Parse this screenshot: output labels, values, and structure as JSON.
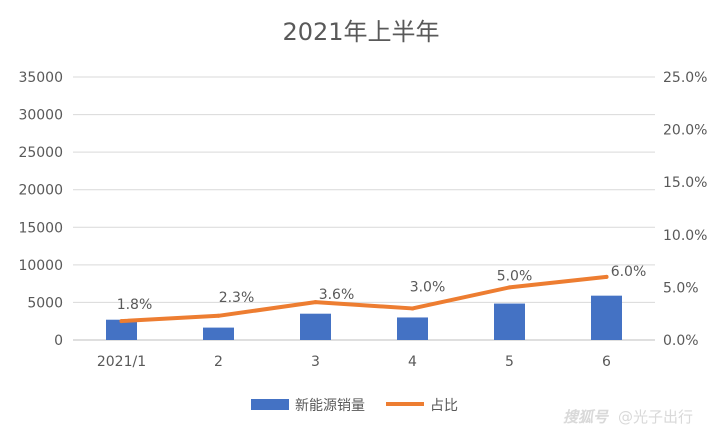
{
  "chart_data": {
    "type": "bar",
    "title": "2021年上半年",
    "categories": [
      "2021/1",
      "2",
      "3",
      "4",
      "5",
      "6"
    ],
    "series": [
      {
        "name": "新能源销量",
        "type": "bar",
        "axis": "left",
        "color": "#4472C4",
        "values": [
          2700,
          1650,
          3500,
          3000,
          4850,
          5900
        ]
      },
      {
        "name": "占比",
        "type": "line",
        "axis": "right",
        "color": "#ED7D31",
        "values": [
          1.8,
          2.3,
          3.6,
          3.0,
          5.0,
          6.0
        ],
        "data_labels": [
          "1.8%",
          "2.3%",
          "3.6%",
          "3.0%",
          "5.0%",
          "6.0%"
        ]
      }
    ],
    "y_left": {
      "min": 0,
      "max": 35000,
      "ticks": [
        "0",
        "5000",
        "10000",
        "15000",
        "20000",
        "25000",
        "30000",
        "35000"
      ]
    },
    "y_right": {
      "min": 0,
      "max": 25,
      "ticks": [
        "0.0%",
        "5.0%",
        "10.0%",
        "15.0%",
        "20.0%",
        "25.0%"
      ]
    },
    "grid": true,
    "legend": "bottom"
  },
  "watermark": "@光子出行",
  "watermark_logo": "搜狐号"
}
